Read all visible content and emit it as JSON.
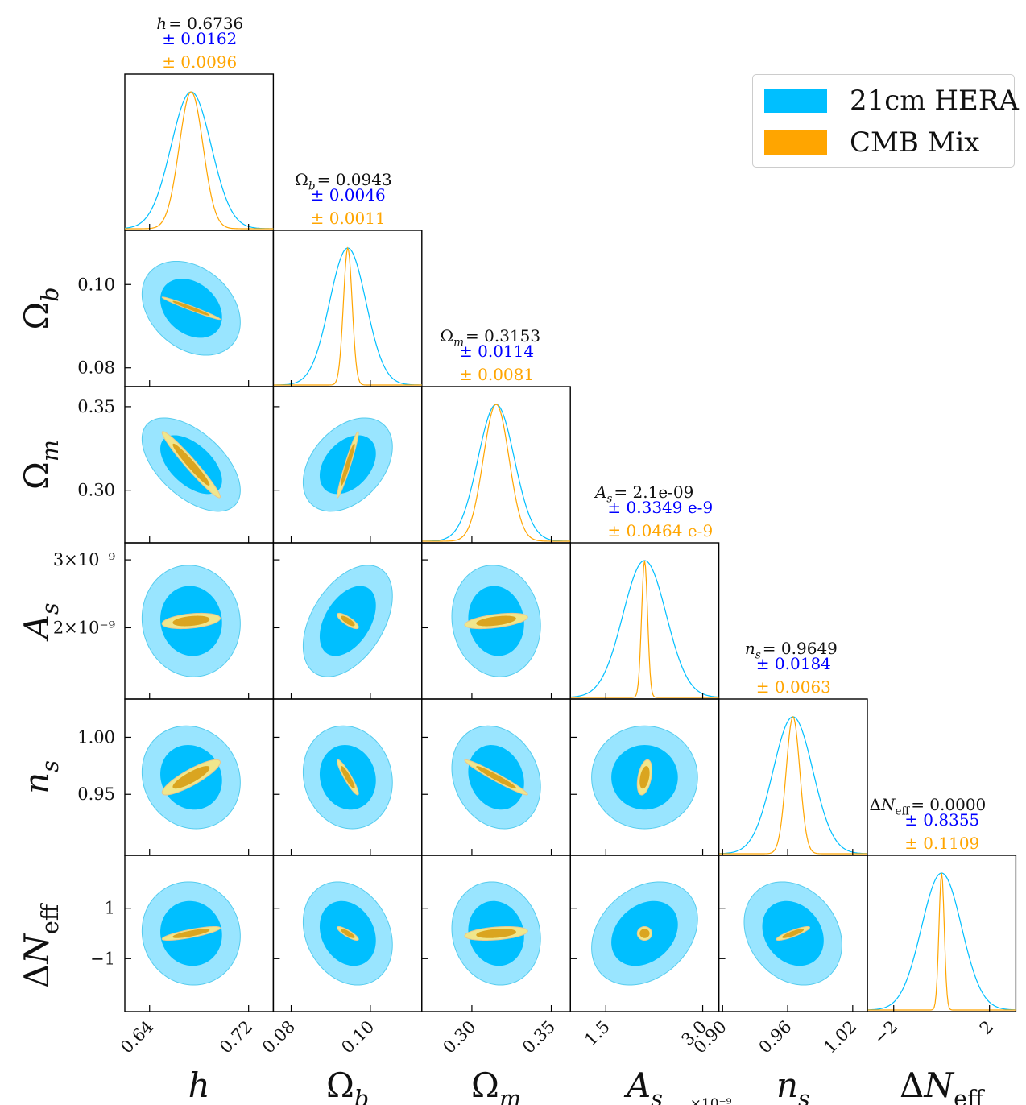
{
  "chart_data": {
    "type": "corner",
    "parameters": [
      {
        "key": "h",
        "axis_label": "h",
        "header_name": "h",
        "fiducial": 0.6736,
        "range": [
          0.62,
          0.74
        ],
        "ticks": [
          0.64,
          0.72
        ],
        "tick_labels": [
          "0.64",
          "0.72"
        ],
        "header_value": "= 0.6736",
        "sigma_hera_text": "± 0.0162",
        "sigma_cmb_text": "± 0.0096",
        "sigma_hera": 0.0162,
        "sigma_cmb": 0.0096
      },
      {
        "key": "Omega_b",
        "axis_label": "Ω_b",
        "header_name": "Ω_b",
        "fiducial": 0.0943,
        "range": [
          0.0755,
          0.113
        ],
        "ticks": [
          0.08,
          0.1
        ],
        "tick_labels": [
          "0.08",
          "0.10"
        ],
        "header_value": "= 0.0943",
        "sigma_hera_text": "± 0.0046",
        "sigma_cmb_text": "± 0.0011",
        "sigma_hera": 0.0046,
        "sigma_cmb": 0.0011
      },
      {
        "key": "Omega_m",
        "axis_label": "Ω_m",
        "header_name": "Ω_m",
        "fiducial": 0.3153,
        "range": [
          0.2685,
          0.362
        ],
        "ticks": [
          0.3,
          0.35
        ],
        "tick_labels": [
          "0.30",
          "0.35"
        ],
        "header_value": "= 0.3153",
        "sigma_hera_text": "± 0.0114",
        "sigma_cmb_text": "± 0.0081",
        "sigma_hera": 0.0114,
        "sigma_cmb": 0.0081
      },
      {
        "key": "A_s",
        "axis_label": "A_s",
        "header_name": "A_s",
        "fiducial": 2.1e-09,
        "range": [
          9.5e-10,
          3.25e-09
        ],
        "ticks": [
          1.5e-09,
          3e-09
        ],
        "tick_labels": [
          "1.5",
          "3.0"
        ],
        "y_tick_labels": [
          "3×10⁻⁹",
          "2×10⁻⁹"
        ],
        "y_ticks": [
          3e-09,
          2e-09
        ],
        "offset_label": "×10⁻⁹",
        "header_value": "= 2.1e-09",
        "sigma_hera_text": "± 0.3349 e-9",
        "sigma_cmb_text": "± 0.0464 e-9",
        "sigma_hera": 3.349e-10,
        "sigma_cmb": 4.64e-11
      },
      {
        "key": "n_s",
        "axis_label": "n_s",
        "header_name": "n_s",
        "fiducial": 0.9649,
        "range": [
          0.8965,
          1.0335
        ],
        "ticks": [
          0.9,
          0.96,
          1.02
        ],
        "tick_labels": [
          "0.90",
          "0.96",
          "1.02"
        ],
        "y_ticks": [
          1.0,
          0.95
        ],
        "y_tick_labels": [
          "1.00",
          "0.95"
        ],
        "header_value": "= 0.9649",
        "sigma_hera_text": "± 0.0184",
        "sigma_cmb_text": "± 0.0063",
        "sigma_hera": 0.0184,
        "sigma_cmb": 0.0063
      },
      {
        "key": "dNeff",
        "axis_label": "ΔN_eff",
        "header_name": "ΔN_eff",
        "fiducial": 0.0,
        "range": [
          -3.1,
          3.1
        ],
        "ticks": [
          -2,
          2
        ],
        "tick_labels": [
          "−2",
          "2"
        ],
        "y_ticks": [
          1,
          -1
        ],
        "y_tick_labels": [
          "1",
          "−1"
        ],
        "header_value": "= 0.0000",
        "sigma_hera_text": "± 0.8355",
        "sigma_cmb_text": "± 0.1109",
        "sigma_hera": 0.8355,
        "sigma_cmb": 0.1109
      }
    ],
    "y_tick_overrides": {
      "Omega_b": {
        "ticks": [
          0.1,
          0.08
        ],
        "labels": [
          "0.10",
          "0.08"
        ]
      },
      "Omega_m": {
        "ticks": [
          0.35,
          0.3
        ],
        "labels": [
          "0.35",
          "0.30"
        ]
      }
    },
    "correlations_hera": {
      "1-0": -0.3,
      "2-0": -0.55,
      "2-1": 0.38,
      "3-0": -0.05,
      "3-1": 0.45,
      "3-2": -0.08,
      "4-0": -0.1,
      "4-1": -0.1,
      "4-2": -0.18,
      "4-3": 0.0,
      "5-0": -0.05,
      "5-1": -0.22,
      "5-2": -0.1,
      "5-3": 0.28,
      "5-4": -0.22
    },
    "correlations_cmb": {
      "1-0": -0.98,
      "2-0": -0.97,
      "2-1": 0.96,
      "3-0": 0.35,
      "3-1": -0.8,
      "3-2": 0.5,
      "4-0": 0.86,
      "4-1": -0.92,
      "4-2": -0.97,
      "4-3": 0.4,
      "5-0": 0.8,
      "5-1": -0.85,
      "5-2": 0.35,
      "5-3": 0.0,
      "5-4": 0.87
    },
    "series": [
      {
        "name": "21cm HERA",
        "color": "#00bfff"
      },
      {
        "name": "CMB Mix",
        "color": "#ffa500"
      }
    ],
    "colors": {
      "hera_line": "#00bfff",
      "hera_inner": "#00bfff",
      "hera_outer": "#99e5ff",
      "hera_edge": "#55ccee",
      "cmb_line": "#ffa500",
      "cmb_inner": "#daa520",
      "cmb_outer": "#f0e68c",
      "cmb_edge": "#e8c890",
      "header_value": "#111111",
      "header_hera": "#0000ff",
      "header_cmb": "#ffa500"
    },
    "legend_location": "top-right",
    "grid": false
  }
}
